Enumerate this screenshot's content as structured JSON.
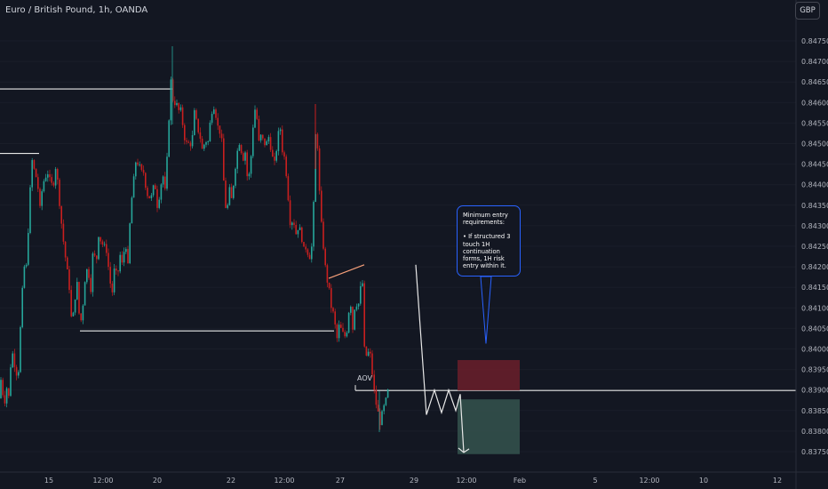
{
  "header": {
    "symbol_title": "Euro / British Pound, 1h, OANDA",
    "currency_button": "GBP"
  },
  "annotations": {
    "callout_title": "Minimum entry requirements:",
    "callout_body": "• If structured 3 touch 1H continuation forms, 1H risk entry within it.",
    "aov_label": "AOV"
  },
  "colors": {
    "background": "#131722",
    "bull": "#26a69a",
    "bear": "#c91f1f",
    "axis_text": "#b2b5be",
    "callout_border": "#2962ff",
    "stop_zone": "#6b1f2a",
    "target_zone": "#33504b",
    "trendline_orange": "#f7a07a"
  },
  "chart_data": {
    "type": "candlestick",
    "symbol": "EURGBP",
    "interval": "1h",
    "source": "OANDA",
    "ylim": [
      0.83725,
      0.8479
    ],
    "y_ticks": [
      "0.84750",
      "0.84700",
      "0.84650",
      "0.84600",
      "0.84550",
      "0.84500",
      "0.84450",
      "0.84400",
      "0.84350",
      "0.84300",
      "0.84250",
      "0.84200",
      "0.84150",
      "0.84100",
      "0.84050",
      "0.84000",
      "0.83950",
      "0.83900",
      "0.83850",
      "0.83800",
      "0.83750"
    ],
    "x_ticks": [
      "15",
      "12:00",
      "20",
      "12:00",
      "22",
      "12:00",
      "27",
      "29",
      "12:00",
      "Feb",
      "5",
      "12:00",
      "10",
      "12"
    ],
    "price_path": [
      [
        0,
        0.8388
      ],
      [
        2,
        0.8397
      ],
      [
        4,
        0.8384
      ],
      [
        6,
        0.8389
      ],
      [
        8,
        0.8391
      ],
      [
        10,
        0.8388
      ],
      [
        13,
        0.84
      ],
      [
        16,
        0.8397
      ],
      [
        18,
        0.8394
      ],
      [
        21,
        0.8395
      ],
      [
        24,
        0.841
      ],
      [
        27,
        0.842
      ],
      [
        30,
        0.842
      ],
      [
        33,
        0.8435
      ],
      [
        36,
        0.8446
      ],
      [
        39,
        0.8443
      ],
      [
        42,
        0.8441
      ],
      [
        45,
        0.8434
      ],
      [
        48,
        0.844
      ],
      [
        51,
        0.8442
      ],
      [
        54,
        0.8443
      ],
      [
        57,
        0.844
      ],
      [
        60,
        0.844
      ],
      [
        63,
        0.8445
      ],
      [
        66,
        0.8438
      ],
      [
        69,
        0.8431
      ],
      [
        72,
        0.8425
      ],
      [
        75,
        0.842
      ],
      [
        78,
        0.8415
      ],
      [
        81,
        0.8405
      ],
      [
        84,
        0.8412
      ],
      [
        87,
        0.8416
      ],
      [
        90,
        0.8405
      ],
      [
        93,
        0.841
      ],
      [
        96,
        0.8418
      ],
      [
        99,
        0.842
      ],
      [
        102,
        0.8414
      ],
      [
        105,
        0.8425
      ],
      [
        108,
        0.842
      ],
      [
        111,
        0.8428
      ],
      [
        114,
        0.8426
      ],
      [
        117,
        0.8425
      ],
      [
        120,
        0.8424
      ],
      [
        123,
        0.8418
      ],
      [
        126,
        0.8413
      ],
      [
        129,
        0.842
      ],
      [
        132,
        0.8417
      ],
      [
        135,
        0.8423
      ],
      [
        138,
        0.842
      ],
      [
        141,
        0.8427
      ],
      [
        144,
        0.842
      ],
      [
        147,
        0.8434
      ],
      [
        150,
        0.844
      ],
      [
        153,
        0.8446
      ],
      [
        156,
        0.8445
      ],
      [
        159,
        0.8443
      ],
      [
        162,
        0.8443
      ],
      [
        165,
        0.8438
      ],
      [
        168,
        0.8437
      ],
      [
        171,
        0.8437
      ],
      [
        174,
        0.8441
      ],
      [
        177,
        0.8435
      ],
      [
        180,
        0.8438
      ],
      [
        183,
        0.8443
      ],
      [
        186,
        0.8438
      ],
      [
        189,
        0.845
      ],
      [
        192,
        0.8466
      ],
      [
        195,
        0.846
      ],
      [
        198,
        0.846
      ],
      [
        201,
        0.8458
      ],
      [
        204,
        0.8458
      ],
      [
        207,
        0.8452
      ],
      [
        210,
        0.845
      ],
      [
        213,
        0.845
      ],
      [
        216,
        0.845
      ],
      [
        219,
        0.8458
      ],
      [
        222,
        0.8454
      ],
      [
        225,
        0.8452
      ],
      [
        228,
        0.8448
      ],
      [
        231,
        0.8451
      ],
      [
        234,
        0.845
      ],
      [
        237,
        0.8456
      ],
      [
        240,
        0.846
      ],
      [
        243,
        0.8457
      ],
      [
        246,
        0.8453
      ],
      [
        249,
        0.8453
      ],
      [
        252,
        0.844
      ],
      [
        255,
        0.8432
      ],
      [
        258,
        0.8439
      ],
      [
        261,
        0.8436
      ],
      [
        264,
        0.8443
      ],
      [
        267,
        0.8448
      ],
      [
        270,
        0.8451
      ],
      [
        273,
        0.8446
      ],
      [
        276,
        0.8448
      ],
      [
        279,
        0.844
      ],
      [
        282,
        0.8445
      ],
      [
        285,
        0.8455
      ],
      [
        288,
        0.846
      ],
      [
        291,
        0.845
      ],
      [
        294,
        0.8452
      ],
      [
        297,
        0.845
      ],
      [
        300,
        0.845
      ],
      [
        303,
        0.8452
      ],
      [
        306,
        0.8447
      ],
      [
        309,
        0.8445
      ],
      [
        312,
        0.845
      ],
      [
        315,
        0.8455
      ],
      [
        318,
        0.8448
      ],
      [
        321,
        0.8446
      ],
      [
        324,
        0.8438
      ],
      [
        327,
        0.843
      ],
      [
        330,
        0.8432
      ],
      [
        333,
        0.8428
      ],
      [
        336,
        0.843
      ],
      [
        339,
        0.8428
      ],
      [
        342,
        0.8424
      ],
      [
        345,
        0.8425
      ],
      [
        348,
        0.8422
      ],
      [
        351,
        0.8425
      ],
      [
        354,
        0.844
      ],
      [
        356,
        0.846
      ],
      [
        358,
        0.8445
      ],
      [
        361,
        0.8432
      ],
      [
        364,
        0.8425
      ],
      [
        367,
        0.8418
      ],
      [
        370,
        0.8415
      ],
      [
        373,
        0.841
      ],
      [
        376,
        0.8408
      ],
      [
        379,
        0.8402
      ],
      [
        382,
        0.8406
      ],
      [
        385,
        0.8404
      ],
      [
        388,
        0.8403
      ],
      [
        391,
        0.8405
      ],
      [
        394,
        0.8413
      ],
      [
        397,
        0.8405
      ],
      [
        400,
        0.8412
      ],
      [
        403,
        0.841
      ],
      [
        406,
        0.8415
      ],
      [
        408,
        0.8416
      ],
      [
        410,
        0.84
      ],
      [
        413,
        0.8398
      ],
      [
        416,
        0.84
      ],
      [
        419,
        0.8394
      ],
      [
        422,
        0.8388
      ],
      [
        425,
        0.8385
      ],
      [
        428,
        0.8382
      ],
      [
        431,
        0.8385
      ],
      [
        434,
        0.8387
      ],
      [
        437,
        0.839
      ]
    ],
    "horizontal_levels": [
      {
        "price": 0.84633,
        "from_x": 0,
        "to_x": 195
      },
      {
        "price": 0.84476,
        "from_x": 0,
        "to_x": 44
      },
      {
        "price": 0.84044,
        "from_x": 90,
        "to_x": 376
      },
      {
        "price": 0.83899,
        "from_x": 400,
        "to_x": 896
      }
    ],
    "trend_line": {
      "from": [
        370,
        0.84172
      ],
      "to": [
        410,
        0.84205
      ]
    },
    "projection_path": [
      [
        468,
        0.84205
      ],
      [
        480,
        0.8384
      ],
      [
        489,
        0.839
      ],
      [
        497,
        0.83845
      ],
      [
        505,
        0.839
      ],
      [
        513,
        0.8385
      ],
      [
        518,
        0.8389
      ],
      [
        522,
        0.83748
      ]
    ],
    "position": {
      "entry": 0.83899,
      "stop": 0.83973,
      "target": 0.83744,
      "x_from": 515,
      "x_to": 585
    },
    "callout_pointer": {
      "tip_x": 547,
      "tip_price": 0.84013
    }
  }
}
